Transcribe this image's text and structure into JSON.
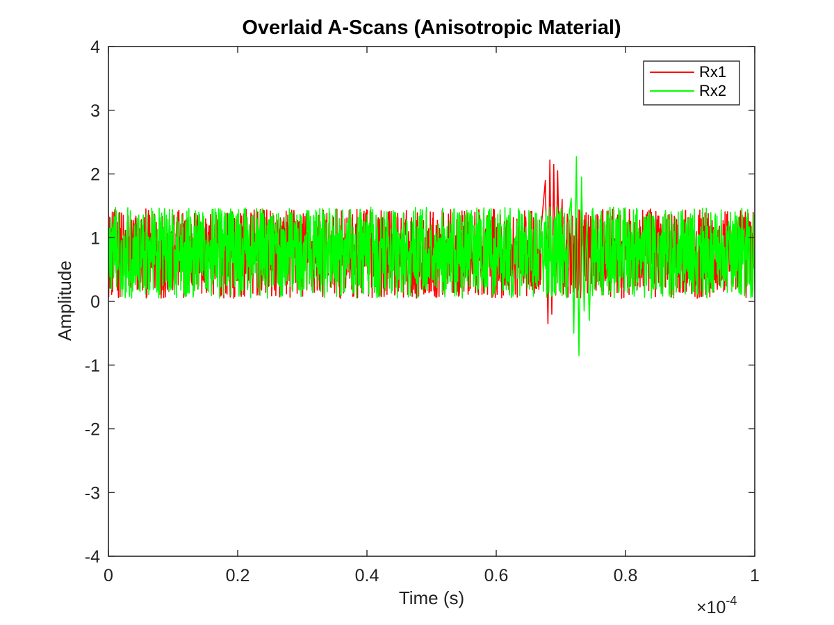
{
  "chart_data": {
    "type": "line",
    "title": "Overlaid A-Scans (Anisotropic Material)",
    "xlabel": "Time (s)",
    "ylabel": "Amplitude",
    "x_multiplier_prefix": "×10",
    "x_multiplier_exponent": "-4",
    "xlim": [
      0,
      0.0001
    ],
    "ylim": [
      -4,
      4
    ],
    "x_ticks": [
      0,
      2e-05,
      4e-05,
      6e-05,
      8e-05,
      0.0001
    ],
    "x_tick_labels": [
      "0",
      "0.2",
      "0.4",
      "0.6",
      "0.8",
      "1"
    ],
    "y_ticks": [
      -4,
      -3,
      -2,
      -1,
      0,
      1,
      2,
      3,
      4
    ],
    "y_tick_labels": [
      "-4",
      "-3",
      "-2",
      "-1",
      "0",
      "1",
      "2",
      "3",
      "4"
    ],
    "grid": false,
    "legend_position": "top-right",
    "series": [
      {
        "name": "Rx1",
        "color": "#ff0000",
        "noise_floor": [
          0.05,
          1.45
        ],
        "peak_points": [
          {
            "x": 6.7e-05,
            "y": 1.2
          },
          {
            "x": 6.76e-05,
            "y": 1.9
          },
          {
            "x": 6.8e-05,
            "y": -0.35
          },
          {
            "x": 6.83e-05,
            "y": 2.22
          },
          {
            "x": 6.86e-05,
            "y": -0.2
          },
          {
            "x": 6.89e-05,
            "y": 2.15
          },
          {
            "x": 6.92e-05,
            "y": 0.1
          },
          {
            "x": 6.95e-05,
            "y": 2.05
          },
          {
            "x": 6.98e-05,
            "y": 0.55
          },
          {
            "x": 7.02e-05,
            "y": 1.6
          }
        ]
      },
      {
        "name": "Rx2",
        "color": "#00ff00",
        "noise_floor": [
          0.05,
          1.48
        ],
        "peak_points": [
          {
            "x": 7.12e-05,
            "y": 1.3
          },
          {
            "x": 7.16e-05,
            "y": 1.62
          },
          {
            "x": 7.2e-05,
            "y": -0.5
          },
          {
            "x": 7.24e-05,
            "y": 2.27
          },
          {
            "x": 7.28e-05,
            "y": -0.85
          },
          {
            "x": 7.32e-05,
            "y": 1.95
          },
          {
            "x": 7.36e-05,
            "y": -0.15
          },
          {
            "x": 7.4e-05,
            "y": 1.25
          },
          {
            "x": 7.44e-05,
            "y": -0.3
          },
          {
            "x": 7.48e-05,
            "y": 1.1
          }
        ]
      }
    ]
  }
}
